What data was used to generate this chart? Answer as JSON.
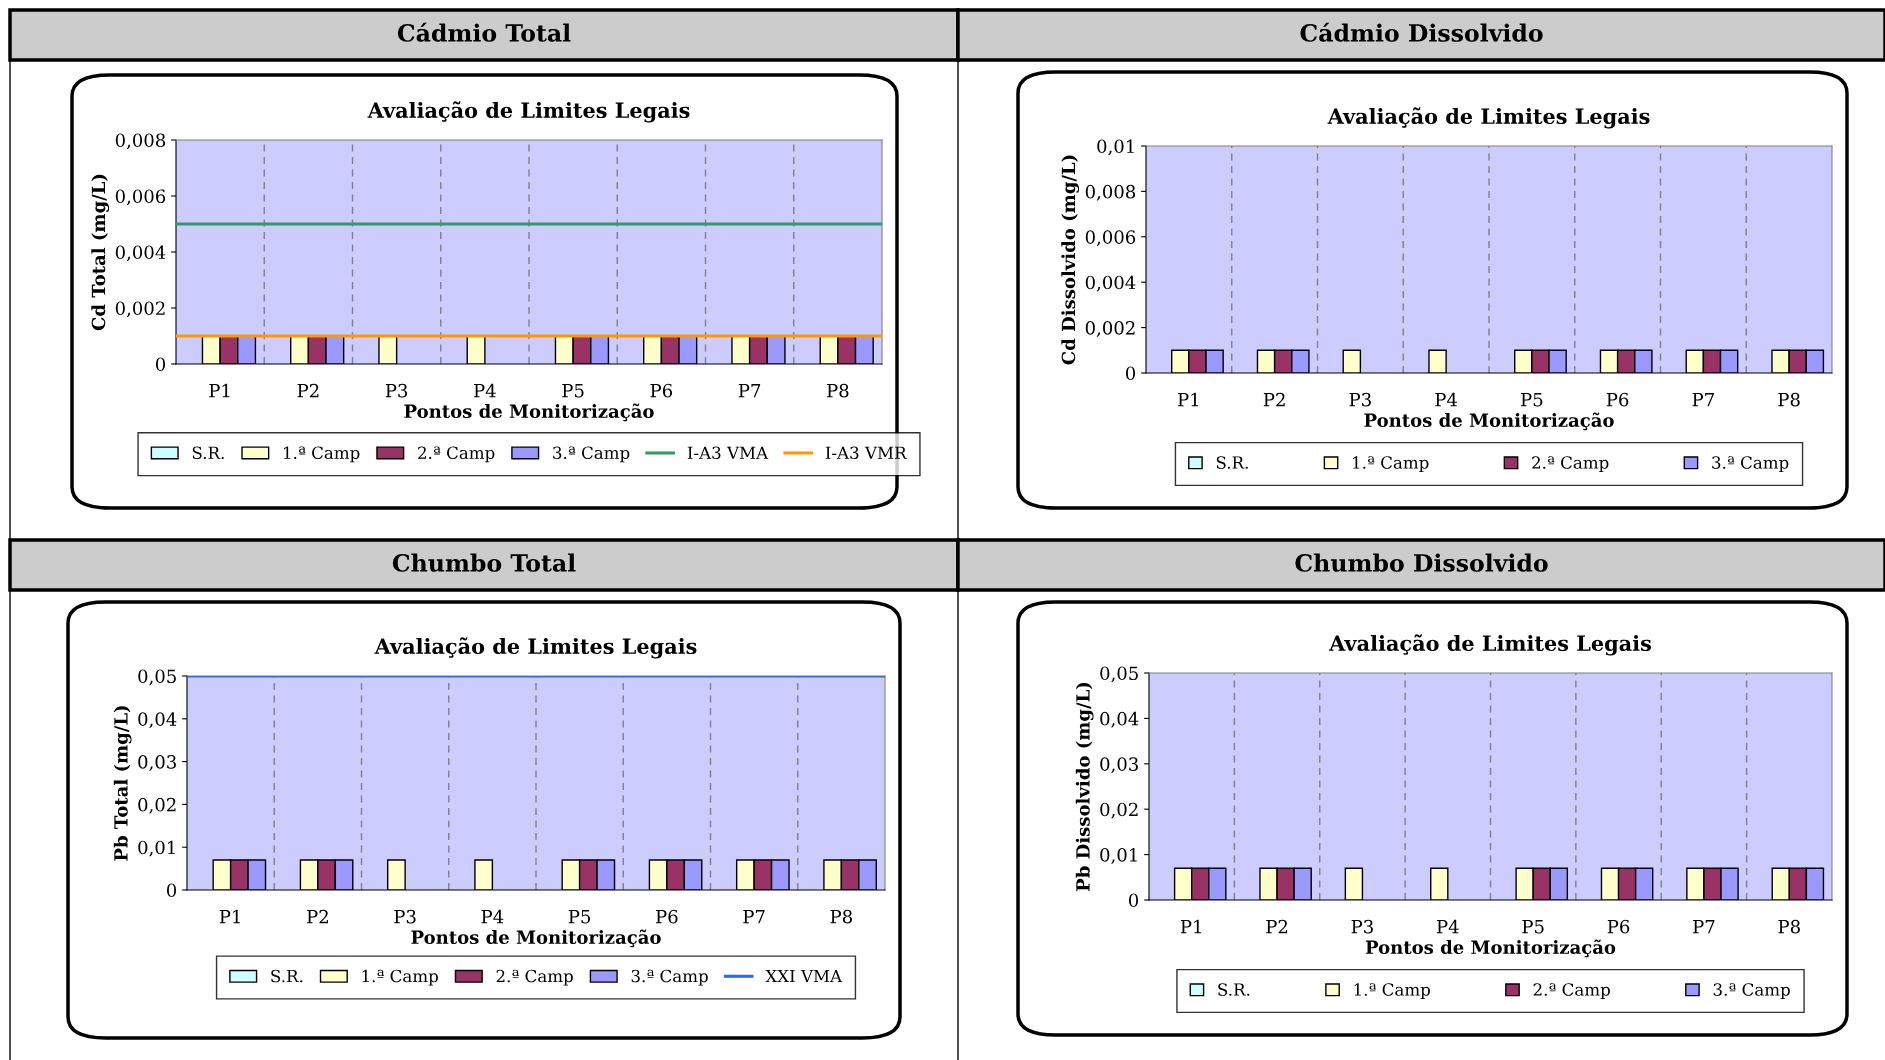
{
  "chart_data": [
    {
      "type": "bar",
      "title": "Cádmio Total",
      "subtitle": "Avaliação de Limites Legais",
      "xlabel": "Pontos de Monitorização",
      "ylabel": "Cd Total (mg/L)",
      "categories": [
        "P1",
        "P2",
        "P3",
        "P4",
        "P5",
        "P6",
        "P7",
        "P8"
      ],
      "series": [
        {
          "name": "S.R.",
          "color": "#ccffff",
          "values": [
            null,
            null,
            null,
            null,
            null,
            null,
            null,
            null
          ]
        },
        {
          "name": "1.ª Camp",
          "color": "#ffffcc",
          "values": [
            0.001,
            0.001,
            0.001,
            0.001,
            0.001,
            0.001,
            0.001,
            0.001
          ]
        },
        {
          "name": "2.ª Camp",
          "color": "#993366",
          "values": [
            0.001,
            0.001,
            null,
            null,
            0.001,
            0.001,
            0.001,
            0.001
          ]
        },
        {
          "name": "3.ª Camp",
          "color": "#9999ff",
          "values": [
            0.001,
            0.001,
            null,
            null,
            0.001,
            0.001,
            0.001,
            0.001
          ]
        }
      ],
      "ref_lines": [
        {
          "axis": "y",
          "value": 0.005,
          "label": "I-A3 VMA",
          "color": "#339966"
        },
        {
          "axis": "y",
          "value": 0.001,
          "label": "I-A3 VMR",
          "color": "#ff9900"
        }
      ],
      "ylim": [
        0,
        0.008
      ],
      "yticks": [
        0,
        {
          "value": 0.002,
          "label": "0,002"
        },
        {
          "value": 0.004,
          "label": "0,004"
        },
        {
          "value": 0.006,
          "label": "0,006"
        },
        {
          "value": 0.008,
          "label": "0,008"
        }
      ],
      "grid": "x",
      "legend": "bottom"
    },
    {
      "type": "bar",
      "title": "Cádmio Dissolvido",
      "subtitle": "Avaliação de Limites Legais",
      "xlabel": "Pontos de Monitorização",
      "ylabel": "Cd Dissolvido (mg/L)",
      "categories": [
        "P1",
        "P2",
        "P3",
        "P4",
        "P5",
        "P6",
        "P7",
        "P8"
      ],
      "series": [
        {
          "name": "S.R.",
          "color": "#ccffff",
          "values": [
            null,
            null,
            null,
            null,
            null,
            null,
            null,
            null
          ]
        },
        {
          "name": "1.ª Camp",
          "color": "#ffffcc",
          "values": [
            0.001,
            0.001,
            0.001,
            0.001,
            0.001,
            0.001,
            0.001,
            0.001
          ]
        },
        {
          "name": "2.ª Camp",
          "color": "#993366",
          "values": [
            0.001,
            0.001,
            null,
            null,
            0.001,
            0.001,
            0.001,
            0.001
          ]
        },
        {
          "name": "3.ª Camp",
          "color": "#9999ff",
          "values": [
            0.001,
            0.001,
            null,
            null,
            0.001,
            0.001,
            0.001,
            0.001
          ]
        }
      ],
      "ylim": [
        0,
        0.01
      ],
      "yticks": [
        0,
        {
          "value": 0.002,
          "label": "0,002"
        },
        {
          "value": 0.004,
          "label": "0,004"
        },
        {
          "value": 0.006,
          "label": "0,006"
        },
        {
          "value": 0.008,
          "label": "0,008"
        },
        {
          "value": 0.01,
          "label": "0,01"
        }
      ],
      "grid": "x",
      "legend": "bottom"
    },
    {
      "type": "bar",
      "title": "Chumbo Total",
      "subtitle": "Avaliação de Limites Legais",
      "xlabel": "Pontos de Monitorização",
      "ylabel": "Pb Total (mg/L)",
      "categories": [
        "P1",
        "P2",
        "P3",
        "P4",
        "P5",
        "P6",
        "P7",
        "P8"
      ],
      "series": [
        {
          "name": "S.R.",
          "color": "#ccffff",
          "values": [
            null,
            null,
            null,
            null,
            null,
            null,
            null,
            null
          ]
        },
        {
          "name": "1.ª Camp",
          "color": "#ffffcc",
          "values": [
            0.007,
            0.007,
            0.007,
            0.007,
            0.007,
            0.007,
            0.007,
            0.007
          ]
        },
        {
          "name": "2.ª Camp",
          "color": "#993366",
          "values": [
            0.007,
            0.007,
            null,
            null,
            0.007,
            0.007,
            0.007,
            0.007
          ]
        },
        {
          "name": "3.ª Camp",
          "color": "#9999ff",
          "values": [
            0.007,
            0.007,
            null,
            null,
            0.007,
            0.007,
            0.007,
            0.007
          ]
        }
      ],
      "ref_lines": [
        {
          "axis": "y",
          "value": 0.05,
          "label": "XXI VMA",
          "color": "#3366ff"
        }
      ],
      "ylim": [
        0,
        0.05
      ],
      "yticks": [
        0,
        {
          "value": 0.01,
          "label": "0,01"
        },
        {
          "value": 0.02,
          "label": "0,02"
        },
        {
          "value": 0.03,
          "label": "0,03"
        },
        {
          "value": 0.04,
          "label": "0,04"
        },
        {
          "value": 0.05,
          "label": "0,05"
        }
      ],
      "grid": "x",
      "legend": "bottom"
    },
    {
      "type": "bar",
      "title": "Chumbo Dissolvido",
      "subtitle": "Avaliação de Limites Legais",
      "xlabel": "Pontos de Monitorização",
      "ylabel": "Pb Dissolvido (mg/L)",
      "categories": [
        "P1",
        "P2",
        "P3",
        "P4",
        "P5",
        "P6",
        "P7",
        "P8"
      ],
      "series": [
        {
          "name": "S.R.",
          "color": "#ccffff",
          "values": [
            null,
            null,
            null,
            null,
            null,
            null,
            null,
            null
          ]
        },
        {
          "name": "1.ª Camp",
          "color": "#ffffcc",
          "values": [
            0.007,
            0.007,
            0.007,
            0.007,
            0.007,
            0.007,
            0.007,
            0.007
          ]
        },
        {
          "name": "2.ª Camp",
          "color": "#993366",
          "values": [
            0.007,
            0.007,
            null,
            null,
            0.007,
            0.007,
            0.007,
            0.007
          ]
        },
        {
          "name": "3.ª Camp",
          "color": "#9999ff",
          "values": [
            0.007,
            0.007,
            null,
            null,
            0.007,
            0.007,
            0.007,
            0.007
          ]
        }
      ],
      "ylim": [
        0,
        0.05
      ],
      "yticks": [
        0,
        {
          "value": 0.01,
          "label": "0,01"
        },
        {
          "value": 0.02,
          "label": "0,02"
        },
        {
          "value": 0.03,
          "label": "0,03"
        },
        {
          "value": 0.04,
          "label": "0,04"
        },
        {
          "value": 0.05,
          "label": "0,05"
        }
      ],
      "grid": "x",
      "legend": "bottom"
    }
  ]
}
